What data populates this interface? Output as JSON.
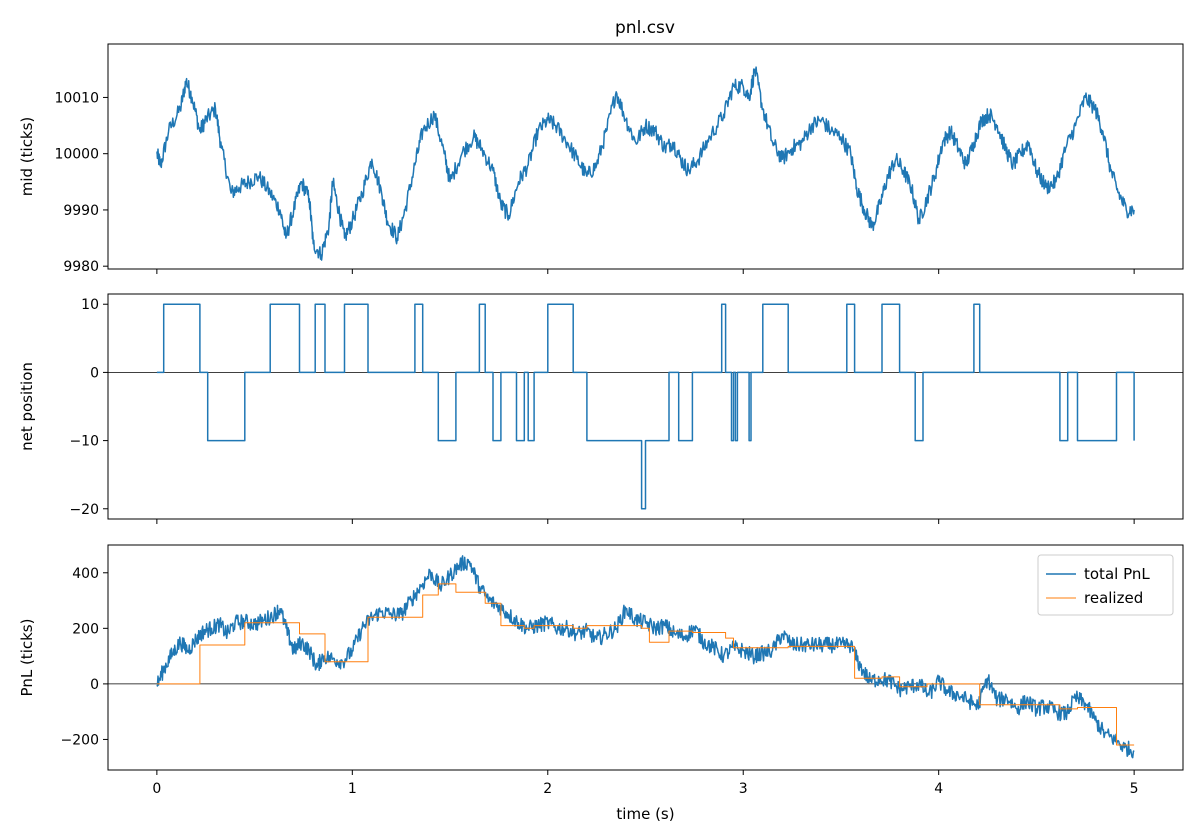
{
  "title": "pnl.csv",
  "colors": {
    "blue": "#1f77b4",
    "orange": "#ff7f0e",
    "black": "#000000"
  },
  "chart_data": [
    {
      "type": "line",
      "ylabel": "mid (ticks)",
      "xlabel": "",
      "xlim": [
        -0.25,
        5.25
      ],
      "ylim": [
        9979.5,
        10019.5
      ],
      "yticks": [
        9980,
        9990,
        10000,
        10010
      ],
      "ytick_labels": [
        "9980",
        "9990",
        "10000",
        "10010"
      ],
      "series": [
        {
          "color": "#1f77b4",
          "style": "noisy",
          "x": [
            0,
            0.02,
            0.06,
            0.12,
            0.15,
            0.18,
            0.22,
            0.25,
            0.3,
            0.33,
            0.38,
            0.42,
            0.47,
            0.52,
            0.58,
            0.63,
            0.66,
            0.7,
            0.74,
            0.78,
            0.8,
            0.84,
            0.88,
            0.9,
            0.93,
            0.96,
            1.0,
            1.05,
            1.1,
            1.15,
            1.18,
            1.23,
            1.27,
            1.32,
            1.36,
            1.42,
            1.47,
            1.5,
            1.56,
            1.62,
            1.66,
            1.72,
            1.76,
            1.8,
            1.85,
            1.9,
            1.95,
            2.0,
            2.04,
            2.1,
            2.15,
            2.2,
            2.25,
            2.3,
            2.35,
            2.4,
            2.45,
            2.5,
            2.55,
            2.6,
            2.64,
            2.68,
            2.72,
            2.77,
            2.83,
            2.9,
            2.95,
            3.0,
            3.03,
            3.06,
            3.1,
            3.15,
            3.2,
            3.25,
            3.3,
            3.35,
            3.4,
            3.45,
            3.5,
            3.55,
            3.58,
            3.62,
            3.66,
            3.7,
            3.74,
            3.78,
            3.82,
            3.86,
            3.9,
            3.94,
            3.98,
            4.02,
            4.06,
            4.1,
            4.14,
            4.18,
            4.22,
            4.26,
            4.3,
            4.34,
            4.38,
            4.42,
            4.46,
            4.5,
            4.55,
            4.6,
            4.65,
            4.7,
            4.75,
            4.8,
            4.84,
            4.88,
            4.92,
            4.96,
            5.0
          ],
          "y": [
            10000,
            9998,
            10004,
            10008,
            10013,
            10010,
            10004,
            10006,
            10008,
            10001,
            9993,
            9994,
            9995,
            9996,
            9993,
            9990,
            9985,
            9990,
            9995,
            9992,
            9984,
            9982,
            9987,
            9995,
            9990,
            9985,
            9988,
            9993,
            9999,
            9993,
            9988,
            9985,
            9990,
            9998,
            10004,
            10007,
            10000,
            9995,
            10000,
            10003,
            10001,
            9997,
            9991,
            9989,
            9995,
            9998,
            10004,
            10006,
            10005,
            10002,
            9999,
            9996,
            9998,
            10004,
            10011,
            10006,
            10002,
            10005,
            10004,
            10001,
            10002,
            9999,
            9997,
            9999,
            10003,
            10007,
            10012,
            10012,
            10010,
            10015,
            10008,
            10002,
            9999,
            10001,
            10002,
            10005,
            10006,
            10004,
            10003,
            10000,
            9994,
            9990,
            9987,
            9991,
            9996,
            9999,
            9997,
            9994,
            9988,
            9992,
            9996,
            10002,
            10004,
            10001,
            9998,
            10002,
            10006,
            10007,
            10005,
            10001,
            9998,
            10000,
            10002,
            9997,
            9994,
            9995,
            10001,
            10005,
            10010,
            10008,
            10004,
            9997,
            9993,
            9990,
            9990
          ]
        }
      ],
      "zero_line": false
    },
    {
      "type": "line",
      "ylabel": "net position",
      "xlabel": "",
      "xlim": [
        -0.25,
        5.25
      ],
      "ylim": [
        -21.5,
        11.5
      ],
      "yticks": [
        -20,
        -10,
        0,
        10
      ],
      "ytick_labels": [
        "−20",
        "−10",
        "0",
        "10"
      ],
      "series": [
        {
          "color": "#1f77b4",
          "style": "step",
          "x": [
            0,
            0.035,
            0.22,
            0.26,
            0.45,
            0.58,
            0.73,
            0.81,
            0.86,
            0.96,
            1.08,
            1.32,
            1.36,
            1.44,
            1.53,
            1.65,
            1.68,
            1.72,
            1.76,
            1.84,
            1.88,
            1.9,
            1.93,
            2.0,
            2.13,
            2.2,
            2.3,
            2.39,
            2.48,
            2.5,
            2.52,
            2.62,
            2.67,
            2.74,
            2.77,
            2.81,
            2.82,
            2.89,
            2.91,
            2.92,
            2.94,
            2.95,
            2.96,
            2.97,
            3.0,
            3.03,
            3.04,
            3.1,
            3.23,
            3.27,
            3.53,
            3.57,
            3.71,
            3.8,
            3.88,
            3.92,
            3.94,
            4.18,
            4.21,
            4.62,
            4.66,
            4.71,
            4.91,
            5.0
          ],
          "y": [
            0,
            10,
            0,
            -10,
            0,
            10,
            0,
            10,
            0,
            10,
            0,
            10,
            0,
            -10,
            0,
            10,
            0,
            -10,
            0,
            -10,
            0,
            -10,
            0,
            10,
            0,
            -10,
            -10,
            -10,
            -20,
            -10,
            -10,
            0,
            -10,
            0,
            0,
            0,
            0,
            10,
            0,
            0,
            -10,
            0,
            -10,
            0,
            0,
            -10,
            0,
            10,
            0,
            0,
            10,
            0,
            10,
            0,
            -10,
            0,
            0,
            10,
            0,
            -10,
            0,
            -10,
            0,
            -10
          ]
        }
      ],
      "zero_line": true
    },
    {
      "type": "line",
      "ylabel": "PnL (ticks)",
      "xlabel": "time (s)",
      "xlim": [
        -0.25,
        5.25
      ],
      "ylim": [
        -310,
        500
      ],
      "yticks": [
        -200,
        0,
        200,
        400
      ],
      "ytick_labels": [
        "−200",
        "0",
        "200",
        "400"
      ],
      "xticks": [
        0,
        1,
        2,
        3,
        4,
        5
      ],
      "xtick_labels": [
        "0",
        "1",
        "2",
        "3",
        "4",
        "5"
      ],
      "legend": {
        "placement": "top-right",
        "entries": [
          "total PnL",
          "realized"
        ]
      },
      "series": [
        {
          "name": "total PnL",
          "color": "#1f77b4",
          "style": "noisy",
          "x": [
            0,
            0.04,
            0.08,
            0.12,
            0.16,
            0.2,
            0.24,
            0.28,
            0.32,
            0.36,
            0.4,
            0.45,
            0.5,
            0.55,
            0.6,
            0.63,
            0.67,
            0.7,
            0.74,
            0.78,
            0.82,
            0.85,
            0.9,
            0.95,
            1.0,
            1.05,
            1.1,
            1.15,
            1.2,
            1.25,
            1.3,
            1.35,
            1.4,
            1.45,
            1.5,
            1.55,
            1.6,
            1.65,
            1.7,
            1.75,
            1.8,
            1.85,
            1.9,
            1.95,
            2.0,
            2.05,
            2.1,
            2.15,
            2.2,
            2.25,
            2.3,
            2.35,
            2.4,
            2.45,
            2.5,
            2.55,
            2.6,
            2.65,
            2.7,
            2.75,
            2.8,
            2.85,
            2.9,
            2.95,
            3.0,
            3.05,
            3.1,
            3.15,
            3.2,
            3.25,
            3.3,
            3.35,
            3.4,
            3.45,
            3.5,
            3.55,
            3.6,
            3.65,
            3.7,
            3.75,
            3.8,
            3.85,
            3.9,
            3.95,
            4.0,
            4.05,
            4.1,
            4.15,
            4.2,
            4.25,
            4.3,
            4.35,
            4.4,
            4.45,
            4.5,
            4.55,
            4.6,
            4.65,
            4.7,
            4.75,
            4.8,
            4.85,
            4.9,
            4.95,
            5.0
          ],
          "y": [
            -5,
            60,
            110,
            150,
            120,
            160,
            190,
            200,
            215,
            180,
            220,
            225,
            215,
            230,
            250,
            270,
            180,
            120,
            150,
            120,
            60,
            100,
            90,
            80,
            120,
            200,
            240,
            260,
            250,
            250,
            300,
            350,
            400,
            350,
            390,
            430,
            440,
            350,
            300,
            280,
            250,
            220,
            200,
            210,
            220,
            200,
            200,
            180,
            190,
            160,
            180,
            200,
            270,
            230,
            220,
            200,
            210,
            180,
            170,
            200,
            150,
            130,
            100,
            130,
            120,
            100,
            110,
            120,
            180,
            140,
            140,
            140,
            140,
            140,
            140,
            140,
            60,
            10,
            20,
            10,
            -20,
            -10,
            0,
            -40,
            10,
            -30,
            -40,
            -60,
            -80,
            20,
            -60,
            -50,
            -90,
            -60,
            -90,
            -80,
            -100,
            -110,
            -50,
            -70,
            -130,
            -180,
            -200,
            -230,
            -240
          ]
        },
        {
          "name": "realized",
          "color": "#ff7f0e",
          "style": "step",
          "x": [
            0,
            0.22,
            0.45,
            0.73,
            0.86,
            1.08,
            1.36,
            1.44,
            1.53,
            1.68,
            1.76,
            1.88,
            1.93,
            2.13,
            2.2,
            2.48,
            2.52,
            2.62,
            2.74,
            2.91,
            2.95,
            3.03,
            3.23,
            3.57,
            3.71,
            3.8,
            3.94,
            4.21,
            4.62,
            4.71,
            4.91,
            5.0
          ],
          "y": [
            0,
            140,
            220,
            180,
            80,
            240,
            320,
            360,
            330,
            290,
            210,
            200,
            210,
            200,
            210,
            200,
            150,
            190,
            185,
            165,
            130,
            130,
            135,
            20,
            25,
            -10,
            0,
            -75,
            -90,
            -85,
            -220,
            -220
          ]
        }
      ],
      "zero_line": true
    }
  ]
}
